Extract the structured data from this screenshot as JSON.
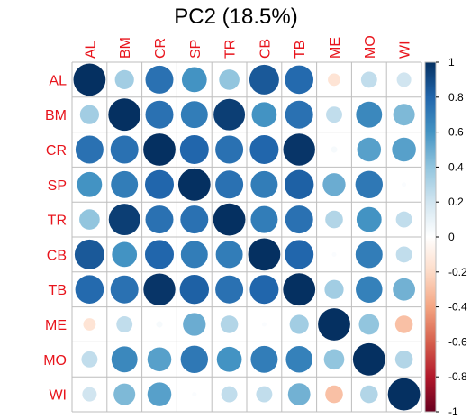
{
  "chart_data": {
    "type": "heatmap",
    "subtype": "correlation-circles",
    "title": "PC2 (18.5%)",
    "variables": [
      "AL",
      "BM",
      "CR",
      "SP",
      "TR",
      "CB",
      "TB",
      "ME",
      "MO",
      "WI"
    ],
    "matrix": [
      [
        1.0,
        0.35,
        0.75,
        0.6,
        0.4,
        0.85,
        0.78,
        -0.15,
        0.25,
        0.2
      ],
      [
        0.35,
        1.0,
        0.75,
        0.7,
        0.95,
        0.6,
        0.75,
        0.25,
        0.65,
        0.45
      ],
      [
        0.75,
        0.75,
        1.0,
        0.8,
        0.75,
        0.8,
        0.98,
        0.04,
        0.55,
        0.55
      ],
      [
        0.6,
        0.7,
        0.8,
        1.0,
        0.75,
        0.7,
        0.82,
        0.5,
        0.72,
        0.02
      ],
      [
        0.4,
        0.95,
        0.75,
        0.75,
        1.0,
        0.7,
        0.75,
        0.3,
        0.6,
        0.25
      ],
      [
        0.85,
        0.6,
        0.8,
        0.7,
        0.7,
        1.0,
        0.8,
        0.02,
        0.7,
        0.25
      ],
      [
        0.78,
        0.75,
        0.98,
        0.82,
        0.75,
        0.8,
        1.0,
        0.35,
        0.68,
        0.48
      ],
      [
        -0.15,
        0.25,
        0.04,
        0.5,
        0.3,
        0.02,
        0.35,
        1.0,
        0.4,
        -0.3
      ],
      [
        0.25,
        0.65,
        0.55,
        0.72,
        0.6,
        0.7,
        0.68,
        0.4,
        1.0,
        0.3
      ],
      [
        0.2,
        0.45,
        0.55,
        0.02,
        0.25,
        0.25,
        0.48,
        -0.3,
        0.3,
        1.0
      ]
    ],
    "colorbar": {
      "min": -1,
      "max": 1,
      "ticks": [
        "-1",
        "-0.8",
        "-0.6",
        "-0.4",
        "-0.2",
        "0",
        "0.2",
        "0.4",
        "0.6",
        "0.8",
        "1"
      ],
      "colors": [
        "#67001F",
        "#B2182B",
        "#D6604D",
        "#F4A582",
        "#FDDBC7",
        "#FFFFFF",
        "#D1E5F0",
        "#92C5DE",
        "#4393C3",
        "#2166AC",
        "#053061"
      ]
    },
    "label_color": "#e8141c",
    "grid_color": "#bebebe"
  }
}
